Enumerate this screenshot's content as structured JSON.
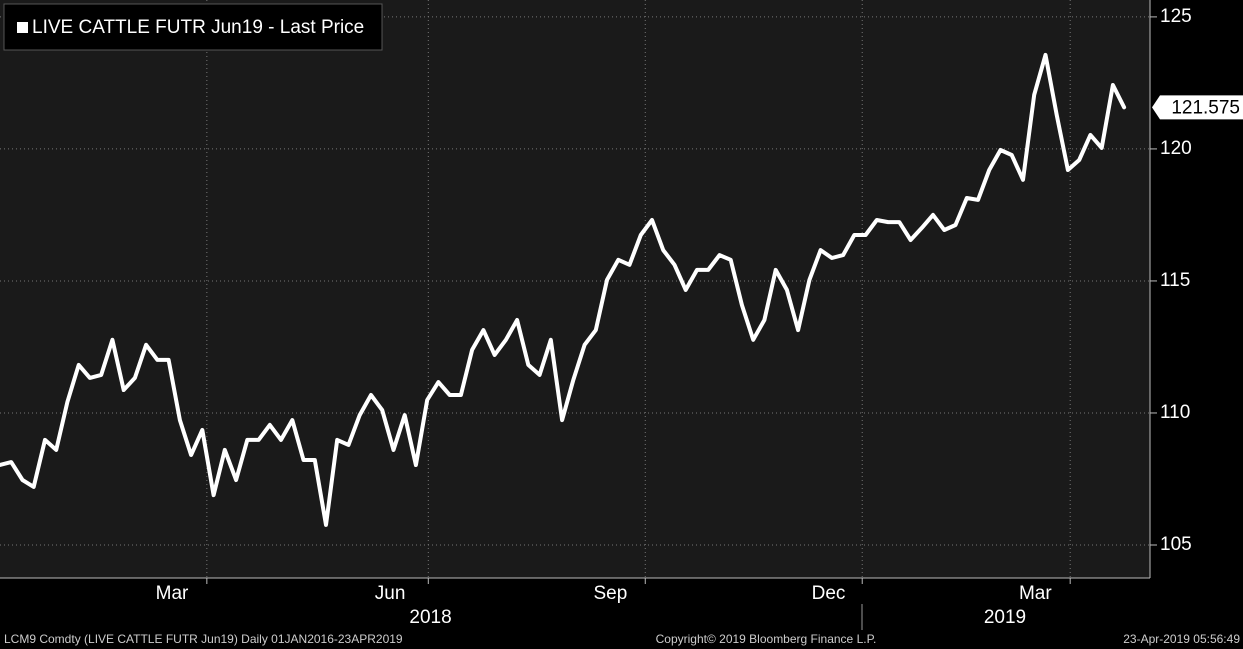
{
  "chart_data": {
    "type": "line",
    "series": [
      {
        "name": "LIVE CATTLE FUTR Jun19 - Last Price",
        "color": "#ffffff",
        "values": [
          108.03,
          108.14,
          107.46,
          107.2,
          108.98,
          108.6,
          110.42,
          111.82,
          111.33,
          111.44,
          112.77,
          110.87,
          111.33,
          112.58,
          112.01,
          112.01,
          109.73,
          108.41,
          109.36,
          106.89,
          108.6,
          107.46,
          108.98,
          108.98,
          109.55,
          108.98,
          109.73,
          108.22,
          108.22,
          105.76,
          108.98,
          108.79,
          109.92,
          110.68,
          110.11,
          108.6,
          109.92,
          108.03,
          110.49,
          111.17,
          110.68,
          110.68,
          112.39,
          113.14,
          112.2,
          112.77,
          113.52,
          111.82,
          111.44,
          112.77,
          109.73,
          111.25,
          112.58,
          113.14,
          115.04,
          115.8,
          115.61,
          116.74,
          117.31,
          116.17,
          115.61,
          114.66,
          115.42,
          115.42,
          115.98,
          115.8,
          114.09,
          112.77,
          113.52,
          115.42,
          114.66,
          113.14,
          115.04,
          116.17,
          115.87,
          115.98,
          116.74,
          116.74,
          117.31,
          117.23,
          117.23,
          116.55,
          117.01,
          117.5,
          116.93,
          117.12,
          118.14,
          118.07,
          119.2,
          119.96,
          119.77,
          118.83,
          122.05,
          123.56,
          121.29,
          119.2,
          119.58,
          120.53,
          120.04,
          122.42,
          121.575
        ]
      }
    ],
    "xlim": [
      0,
      102.3
    ],
    "xticks": [
      {
        "value": 15.3,
        "label": "Mar"
      },
      {
        "value": 34.7,
        "label": "Jun"
      },
      {
        "value": 54.3,
        "label": "Sep"
      },
      {
        "value": 73.7,
        "label": "Dec"
      },
      {
        "value": 92.1,
        "label": "Mar"
      }
    ],
    "xgrid": [
      18.4,
      38.1,
      57.4,
      76.7,
      95.2
    ],
    "year_labels": [
      {
        "value": 38.3,
        "label": "2018"
      },
      {
        "value": 89.4,
        "label": "2019"
      }
    ],
    "ylim": [
      103.75,
      125.64
    ],
    "yticks": [
      105,
      110,
      115,
      120,
      125
    ],
    "grid": true
  },
  "footer": {
    "left": "LCM9 Comdty (LIVE CATTLE FUTR  Jun19)  Daily 01JAN2016-23APR2019",
    "center": "Copyright© 2019 Bloomberg Finance L.P.",
    "right": "23-Apr-2019 05:56:49"
  }
}
